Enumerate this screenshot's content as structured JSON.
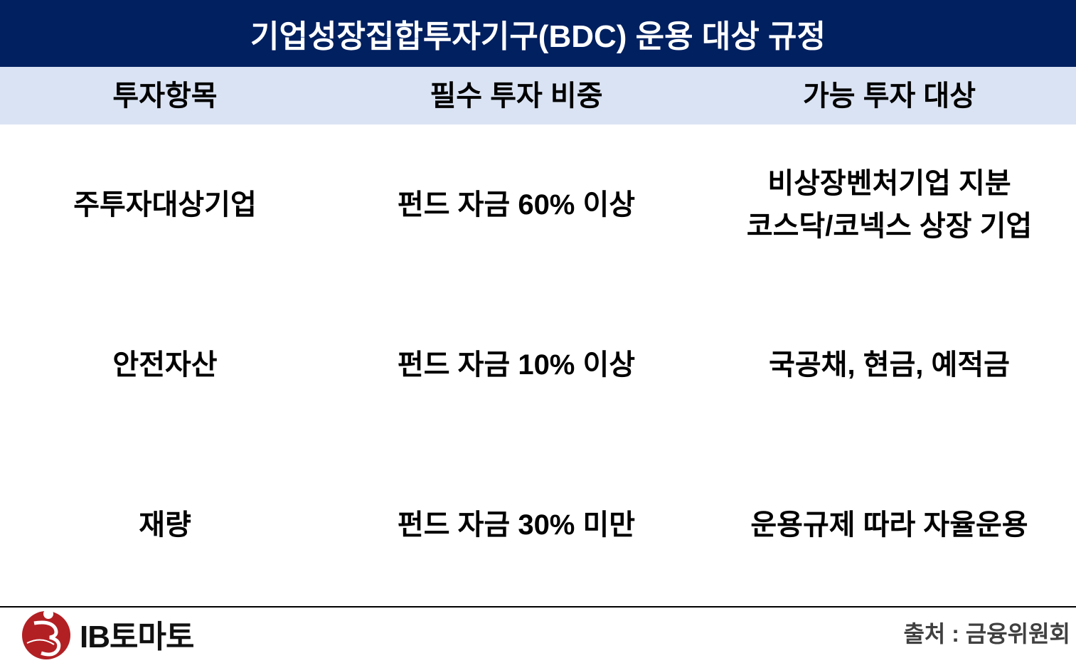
{
  "title": "기업성장집합투자기구(BDC) 운용 대상 규정",
  "columns": [
    "투자항목",
    "필수 투자 비중",
    "가능 투자 대상"
  ],
  "rows": [
    {
      "item": "주투자대상기업",
      "ratio": "펀드 자금 60% 이상",
      "targets": [
        "비상장벤처기업 지분",
        "코스닥/코넥스 상장 기업"
      ]
    },
    {
      "item": "안전자산",
      "ratio": "펀드 자금 10% 이상",
      "targets": [
        "국공채, 현금, 예적금"
      ]
    },
    {
      "item": "재량",
      "ratio": "펀드 자금 30% 미만",
      "targets": [
        "운용규제 따라 자율운용"
      ]
    }
  ],
  "footer": {
    "logo_text": "IB토마토",
    "source": "출처 : 금융위원회"
  },
  "colors": {
    "title_bg": "#002060",
    "header_bg": "#DAE3F3",
    "logo_red": "#B22024"
  }
}
